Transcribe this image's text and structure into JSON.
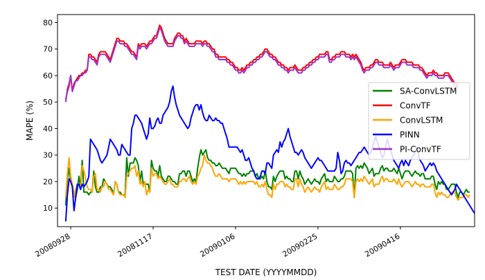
{
  "chart_data": {
    "type": "line",
    "title": "",
    "xlabel": "TEST DATE (YYYYMMDD)",
    "ylabel": "MAPE (%)",
    "x_start": "2008-09-25",
    "x_step_days": 1,
    "x_ticks": [
      {
        "date": "2008-09-28",
        "label": "20080928"
      },
      {
        "date": "2008-11-17",
        "label": "20081117"
      },
      {
        "date": "2009-01-06",
        "label": "20090106"
      },
      {
        "date": "2009-02-25",
        "label": "20090225"
      },
      {
        "date": "2009-04-16",
        "label": "20090416"
      }
    ],
    "xlim": [
      "2008-09-20",
      "2009-05-31"
    ],
    "ylim": [
      3,
      83
    ],
    "y_ticks": [
      10,
      20,
      30,
      40,
      50,
      60,
      70,
      80
    ],
    "grid": false,
    "legend_position": "right",
    "series": [
      {
        "name": "SA-ConvLSTM",
        "color": "#008000",
        "values": [
          11,
          21,
          25,
          20,
          19,
          15,
          14,
          17,
          22,
          18,
          28,
          16,
          16,
          16,
          15,
          16,
          16,
          24,
          18,
          16,
          16,
          18,
          18,
          21,
          20,
          19,
          18,
          18,
          17,
          15,
          20,
          19,
          16,
          16,
          15,
          15,
          15,
          29,
          22,
          27,
          27,
          27,
          29,
          28,
          26,
          20,
          24,
          19,
          19,
          19,
          19,
          16,
          28,
          25,
          24,
          24,
          22,
          26,
          22,
          21,
          20,
          20,
          22,
          22,
          21,
          20,
          20,
          19,
          19,
          23,
          23,
          24,
          24,
          22,
          24,
          24,
          22,
          20,
          21,
          20,
          25,
          29,
          32,
          30,
          31,
          32,
          29,
          28,
          28,
          27,
          27,
          26,
          26,
          27,
          26,
          25,
          25,
          25,
          24,
          23,
          25,
          25,
          25,
          25,
          24,
          23,
          23,
          22,
          23,
          22,
          23,
          23,
          24,
          24,
          24,
          22,
          23,
          21,
          21,
          22,
          21,
          24,
          20,
          18,
          18,
          17,
          22,
          20,
          22,
          23,
          24,
          24,
          24,
          21,
          22,
          21,
          21,
          20,
          20,
          24,
          24,
          21,
          24,
          22,
          21,
          19,
          20,
          21,
          20,
          19,
          20,
          21,
          20,
          20,
          19,
          21,
          22,
          23,
          20,
          21,
          20,
          20,
          20,
          22,
          21,
          20,
          20,
          21,
          21,
          22,
          24,
          24,
          24,
          24,
          23,
          14,
          25,
          26,
          25,
          26,
          25,
          27,
          26,
          25,
          23,
          24,
          25,
          22,
          23,
          23,
          23,
          25,
          26,
          24,
          25,
          25,
          24,
          24,
          24,
          25,
          24,
          23,
          25,
          23,
          21,
          23,
          24,
          24,
          24,
          23,
          22,
          23,
          24,
          23,
          23,
          22,
          23,
          23,
          21,
          21,
          21,
          21,
          22,
          22,
          19,
          17,
          20,
          19,
          20,
          19,
          19,
          17,
          17,
          18,
          19,
          19,
          19,
          16,
          14,
          16,
          16,
          15,
          16,
          17,
          16,
          16
        ]
      },
      {
        "name": "ConvTF",
        "color": "#ff0000",
        "values": [
          51,
          54,
          56,
          60,
          54,
          57,
          58,
          59,
          60,
          60,
          61,
          61,
          62,
          62,
          68,
          68,
          67,
          67,
          66,
          65,
          68,
          69,
          69,
          69,
          69,
          68,
          67,
          66,
          68,
          70,
          72,
          74,
          74,
          73,
          73,
          73,
          72,
          72,
          71,
          70,
          69,
          69,
          68,
          67,
          72,
          71,
          72,
          72,
          72,
          71,
          72,
          73,
          73,
          74,
          75,
          75,
          77,
          79,
          78,
          76,
          74,
          73,
          72,
          72,
          72,
          72,
          74,
          75,
          76,
          76,
          75,
          75,
          73,
          74,
          73,
          72,
          72,
          72,
          72,
          73,
          73,
          73,
          73,
          72,
          73,
          73,
          72,
          72,
          71,
          70,
          70,
          68,
          68,
          67,
          67,
          67,
          67,
          67,
          66,
          66,
          65,
          65,
          64,
          63,
          63,
          62,
          62,
          63,
          62,
          63,
          64,
          64,
          65,
          65,
          66,
          66,
          67,
          67,
          68,
          68,
          69,
          70,
          70,
          69,
          68,
          68,
          67,
          67,
          66,
          65,
          65,
          64,
          64,
          63,
          63,
          62,
          63,
          63,
          63,
          64,
          63,
          62,
          62,
          62,
          63,
          63,
          64,
          64,
          65,
          65,
          66,
          66,
          67,
          67,
          68,
          68,
          68,
          68,
          69,
          69,
          66,
          66,
          67,
          67,
          68,
          68,
          68,
          69,
          69,
          69,
          68,
          68,
          68,
          67,
          68,
          67,
          68,
          67,
          66,
          65,
          63,
          62,
          63,
          63,
          63,
          64,
          64,
          65,
          66,
          66,
          65,
          65,
          65,
          64,
          64,
          64,
          64,
          65,
          64,
          63,
          64,
          64,
          64,
          65,
          66,
          66,
          66,
          65,
          65,
          65,
          65,
          64,
          64,
          64,
          64,
          63,
          63,
          62,
          61,
          60,
          61,
          61,
          61,
          62,
          61,
          61,
          60,
          60,
          60,
          60,
          61,
          61,
          61,
          60,
          59,
          58,
          57,
          57,
          56
        ]
      },
      {
        "name": "ConvLSTM",
        "color": "#ffa500",
        "values": [
          14,
          23,
          29,
          22,
          19,
          14,
          17,
          19,
          19,
          17,
          26,
          24,
          21,
          18,
          17,
          17,
          16,
          22,
          23,
          17,
          17,
          16,
          18,
          18,
          20,
          19,
          17,
          17,
          16,
          15,
          20,
          19,
          16,
          15,
          15,
          15,
          14,
          22,
          23,
          24,
          25,
          25,
          26,
          22,
          24,
          19,
          20,
          18,
          20,
          15,
          17,
          16,
          25,
          22,
          23,
          23,
          21,
          22,
          21,
          20,
          19,
          19,
          20,
          21,
          19,
          19,
          18,
          18,
          18,
          20,
          20,
          21,
          21,
          20,
          21,
          22,
          20,
          19,
          20,
          19,
          22,
          23,
          25,
          26,
          30,
          28,
          27,
          27,
          26,
          25,
          23,
          22,
          22,
          23,
          22,
          21,
          21,
          21,
          21,
          20,
          21,
          21,
          21,
          21,
          20,
          19,
          20,
          19,
          20,
          19,
          20,
          20,
          20,
          20,
          20,
          19,
          20,
          18,
          18,
          19,
          18,
          20,
          17,
          15,
          15,
          14,
          19,
          17,
          19,
          19,
          20,
          20,
          20,
          18,
          19,
          18,
          18,
          17,
          17,
          21,
          21,
          18,
          21,
          19,
          18,
          16,
          17,
          18,
          17,
          16,
          17,
          18,
          17,
          17,
          16,
          18,
          19,
          20,
          17,
          18,
          17,
          17,
          17,
          19,
          18,
          17,
          17,
          18,
          18,
          19,
          21,
          21,
          21,
          21,
          20,
          14,
          20,
          21,
          20,
          21,
          20,
          22,
          21,
          20,
          19,
          20,
          21,
          18,
          19,
          19,
          19,
          21,
          22,
          20,
          21,
          21,
          20,
          20,
          20,
          21,
          20,
          19,
          21,
          19,
          18,
          19,
          20,
          20,
          20,
          19,
          18,
          19,
          20,
          19,
          19,
          18,
          19,
          19,
          18,
          18,
          18,
          18,
          19,
          19,
          16,
          14,
          16,
          15,
          16,
          15,
          15,
          14,
          14,
          15,
          16,
          16,
          16,
          14,
          13,
          14,
          14,
          14,
          15,
          15,
          14,
          15
        ]
      },
      {
        "name": "PINN",
        "color": "#0000ff",
        "values": [
          5,
          15,
          21,
          20,
          18,
          9,
          14,
          19,
          19,
          17,
          19,
          18,
          19,
          20,
          22,
          36,
          35,
          34,
          33,
          32,
          30,
          28,
          27,
          28,
          29,
          30,
          33,
          36,
          35,
          34,
          33,
          32,
          30,
          30,
          34,
          33,
          32,
          31,
          30,
          30,
          40,
          42,
          45,
          45,
          44,
          43,
          42,
          40,
          38,
          36,
          38,
          44,
          40,
          40,
          41,
          43,
          44,
          42,
          42,
          45,
          46,
          47,
          48,
          50,
          54,
          56,
          52,
          49,
          47,
          45,
          44,
          43,
          42,
          41,
          40,
          41,
          44,
          46,
          48,
          49,
          49,
          47,
          49,
          46,
          44,
          43,
          43,
          45,
          44,
          43,
          43,
          44,
          43,
          43,
          42,
          42,
          40,
          38,
          36,
          33,
          33,
          33,
          33,
          33,
          33,
          32,
          31,
          32,
          30,
          28,
          28,
          29,
          27,
          25,
          24,
          22,
          21,
          21,
          22,
          24,
          24,
          23,
          27,
          27,
          26,
          25,
          30,
          31,
          32,
          31,
          35,
          33,
          35,
          36,
          38,
          40,
          37,
          35,
          33,
          31,
          31,
          30,
          31,
          32,
          31,
          29,
          28,
          27,
          26,
          25,
          26,
          27,
          28,
          29,
          28,
          28,
          27,
          26,
          25,
          24,
          24,
          24,
          24,
          24,
          25,
          31,
          28,
          23,
          24,
          27,
          28,
          27,
          27,
          26,
          27,
          28,
          29,
          30,
          31,
          31,
          32,
          33,
          32,
          31,
          30,
          31,
          33,
          35,
          37,
          35,
          33,
          31,
          29,
          30,
          33,
          36,
          34,
          32,
          30,
          28,
          27,
          26,
          25,
          27,
          28,
          26,
          28,
          27,
          26,
          28,
          29,
          30,
          31,
          33,
          30,
          28,
          27,
          26,
          24,
          25,
          26,
          27,
          26,
          27,
          26,
          24,
          23,
          22,
          21,
          20,
          19,
          18,
          17,
          16,
          15,
          16,
          17,
          19,
          18,
          17,
          16,
          15,
          14,
          13,
          12,
          11,
          10,
          9,
          8
        ]
      },
      {
        "name": "PI-ConvTF",
        "color": "#9932cc",
        "values": [
          50,
          55,
          57,
          60,
          54,
          56,
          58,
          58,
          59,
          60,
          60,
          61,
          61,
          62,
          67,
          67,
          66,
          66,
          65,
          64,
          67,
          68,
          68,
          68,
          68,
          67,
          66,
          65,
          67,
          69,
          71,
          73,
          73,
          72,
          72,
          72,
          71,
          71,
          70,
          69,
          68,
          68,
          67,
          66,
          71,
          70,
          71,
          71,
          71,
          70,
          71,
          72,
          72,
          73,
          74,
          74,
          76,
          78,
          77,
          75,
          73,
          72,
          71,
          71,
          71,
          71,
          73,
          74,
          75,
          75,
          74,
          74,
          72,
          73,
          72,
          71,
          71,
          71,
          71,
          72,
          72,
          72,
          72,
          71,
          72,
          72,
          71,
          71,
          70,
          69,
          69,
          67,
          67,
          66,
          66,
          66,
          66,
          66,
          65,
          65,
          64,
          64,
          63,
          62,
          62,
          61,
          61,
          62,
          61,
          62,
          63,
          63,
          64,
          64,
          65,
          65,
          66,
          66,
          67,
          67,
          68,
          69,
          69,
          68,
          67,
          67,
          66,
          66,
          65,
          64,
          64,
          63,
          63,
          62,
          62,
          61,
          62,
          62,
          62,
          63,
          62,
          61,
          61,
          61,
          62,
          62,
          63,
          63,
          64,
          64,
          65,
          65,
          66,
          66,
          67,
          67,
          67,
          67,
          68,
          68,
          65,
          65,
          66,
          66,
          67,
          67,
          67,
          68,
          68,
          68,
          67,
          67,
          67,
          66,
          67,
          66,
          67,
          66,
          65,
          64,
          62,
          61,
          62,
          62,
          62,
          63,
          63,
          64,
          65,
          65,
          64,
          64,
          64,
          63,
          63,
          63,
          63,
          64,
          63,
          62,
          63,
          63,
          63,
          64,
          65,
          65,
          65,
          64,
          64,
          64,
          64,
          63,
          63,
          63,
          63,
          62,
          62,
          61,
          60,
          59,
          60,
          60,
          60,
          61,
          60,
          60,
          59,
          59,
          59,
          59,
          60,
          60,
          60,
          59,
          58,
          57,
          56,
          56,
          55
        ]
      }
    ]
  }
}
